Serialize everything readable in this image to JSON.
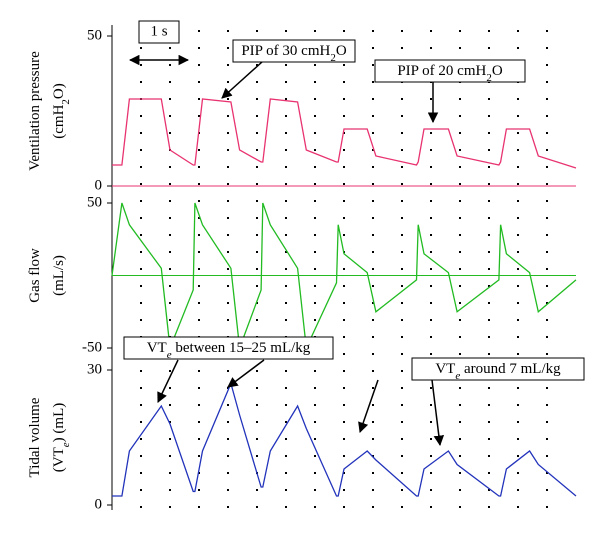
{
  "chart_data": [
    {
      "type": "line",
      "ylabel": [
        [
          "Ventilation pressure"
        ],
        [
          "(cmH",
          "2",
          "O)"
        ]
      ],
      "x": [
        0,
        0.17,
        0.3,
        0.85,
        1.0,
        1.4,
        1.43,
        1.56,
        2.05,
        2.2,
        2.57,
        2.6,
        2.73,
        3.2,
        3.35,
        3.87,
        3.9,
        4.0,
        4.4,
        4.55,
        5.25,
        5.28,
        5.38,
        5.8,
        5.95,
        6.67,
        6.7,
        6.8,
        7.2,
        7.35,
        8.0
      ],
      "series": [
        {
          "color": "#e8336f",
          "values": [
            7,
            7,
            29,
            29,
            12,
            7,
            7,
            29,
            28,
            12,
            8,
            8,
            29,
            28,
            12,
            8,
            8,
            19,
            19,
            10,
            7,
            8,
            19,
            19,
            10,
            7,
            8,
            19,
            19,
            10,
            6
          ]
        }
      ],
      "xlim": [
        0,
        8
      ],
      "ylim": [
        0,
        50
      ],
      "yticks": [
        0,
        50
      ],
      "tick_color": "#e8336f",
      "zero_line": true,
      "annotations": [
        {
          "text": [
            "PIP of 30 cmH",
            "2",
            "O"
          ]
        },
        {
          "text": [
            "PIP of 20 cmH",
            "2",
            "O"
          ]
        }
      ],
      "scale_bar": "1 s"
    },
    {
      "type": "line",
      "ylabel": [
        [
          "Gas flow"
        ],
        [
          "(mL/s)"
        ]
      ],
      "x": [
        0,
        0.17,
        0.3,
        0.85,
        1.0,
        1.4,
        1.43,
        1.56,
        2.05,
        2.2,
        2.57,
        2.6,
        2.73,
        3.2,
        3.35,
        3.87,
        3.9,
        4.0,
        4.4,
        4.55,
        5.25,
        5.28,
        5.38,
        5.8,
        5.95,
        6.67,
        6.7,
        6.8,
        7.2,
        7.35,
        8.0
      ],
      "series": [
        {
          "color": "#22bb22",
          "values": [
            0,
            50,
            35,
            5,
            -50,
            -10,
            50,
            35,
            5,
            -50,
            -10,
            50,
            35,
            5,
            -50,
            -5,
            35,
            15,
            2,
            -25,
            -3,
            35,
            15,
            2,
            -25,
            -3,
            35,
            15,
            2,
            -25,
            -3
          ]
        }
      ],
      "xlim": [
        0,
        8
      ],
      "ylim": [
        -50,
        50
      ],
      "yticks": [
        -50,
        50
      ],
      "tick_color": "#22aa22",
      "zero_line": true
    },
    {
      "type": "line",
      "ylabel": [
        [
          "Tidal volume"
        ],
        [
          "(VT",
          "e",
          ") (mL)"
        ]
      ],
      "x": [
        0,
        0.17,
        0.3,
        0.85,
        1.0,
        1.4,
        1.43,
        1.56,
        2.05,
        2.2,
        2.57,
        2.6,
        2.73,
        3.2,
        3.35,
        3.87,
        3.9,
        4.0,
        4.4,
        4.55,
        5.25,
        5.28,
        5.38,
        5.8,
        5.95,
        6.67,
        6.7,
        6.8,
        7.2,
        7.35,
        8.0
      ],
      "series": [
        {
          "color": "#2233bb",
          "values": [
            2,
            2,
            12,
            22,
            18,
            3,
            3,
            12,
            27,
            20,
            4,
            4,
            12,
            22,
            17,
            2,
            2,
            8,
            12,
            10,
            2,
            2,
            8,
            12,
            9,
            2,
            2,
            8,
            12,
            9,
            2
          ]
        }
      ],
      "xlim": [
        0,
        8
      ],
      "ylim": [
        0,
        30
      ],
      "yticks": [
        0,
        30
      ],
      "tick_color": "#2233bb",
      "zero_line": false,
      "annotations": [
        {
          "text": [
            "VT",
            "e",
            " between 15–25 mL/kg"
          ]
        },
        {
          "text": [
            "VT",
            "e",
            " around 7 mL/kg"
          ]
        }
      ]
    }
  ]
}
